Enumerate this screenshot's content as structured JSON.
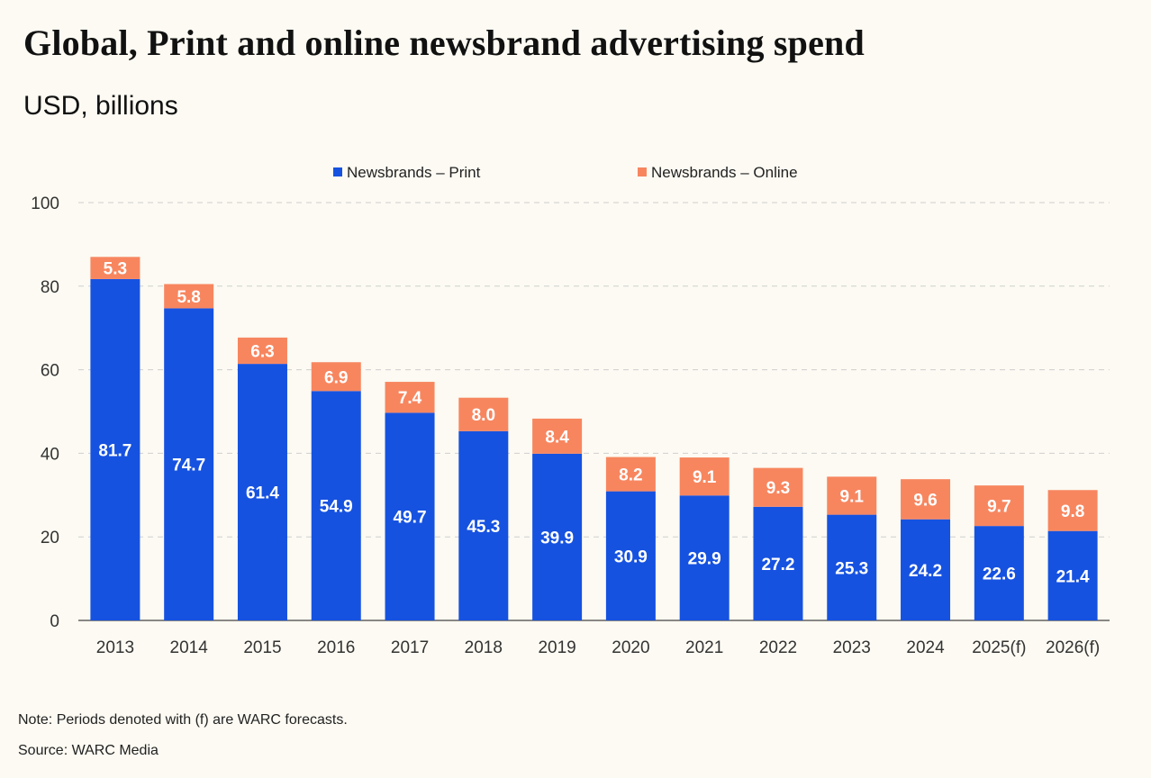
{
  "title": "Global, Print and online newsbrand advertising spend",
  "subtitle": "USD, billions",
  "note": "Note: Periods denoted with (f) are WARC forecasts.",
  "source": "Source: WARC Media",
  "colors": {
    "print": "#1652e0",
    "online": "#f7865f"
  },
  "chart_data": {
    "type": "bar",
    "stacked": true,
    "categories": [
      "2013",
      "2014",
      "2015",
      "2016",
      "2017",
      "2018",
      "2019",
      "2020",
      "2021",
      "2022",
      "2023",
      "2024",
      "2025(f)",
      "2026(f)"
    ],
    "series": [
      {
        "name": "Newsbrands – Print",
        "values": [
          81.7,
          74.7,
          61.4,
          54.9,
          49.7,
          45.3,
          39.9,
          30.9,
          29.9,
          27.2,
          25.3,
          24.2,
          22.6,
          21.4
        ]
      },
      {
        "name": "Newsbrands – Online",
        "values": [
          5.3,
          5.8,
          6.3,
          6.9,
          7.4,
          8.0,
          8.4,
          8.2,
          9.1,
          9.3,
          9.1,
          9.6,
          9.7,
          9.8
        ]
      }
    ],
    "ylim": [
      0,
      100
    ],
    "yticks": [
      0,
      20,
      40,
      60,
      80,
      100
    ],
    "grid": true,
    "legend_position": "top-center"
  }
}
